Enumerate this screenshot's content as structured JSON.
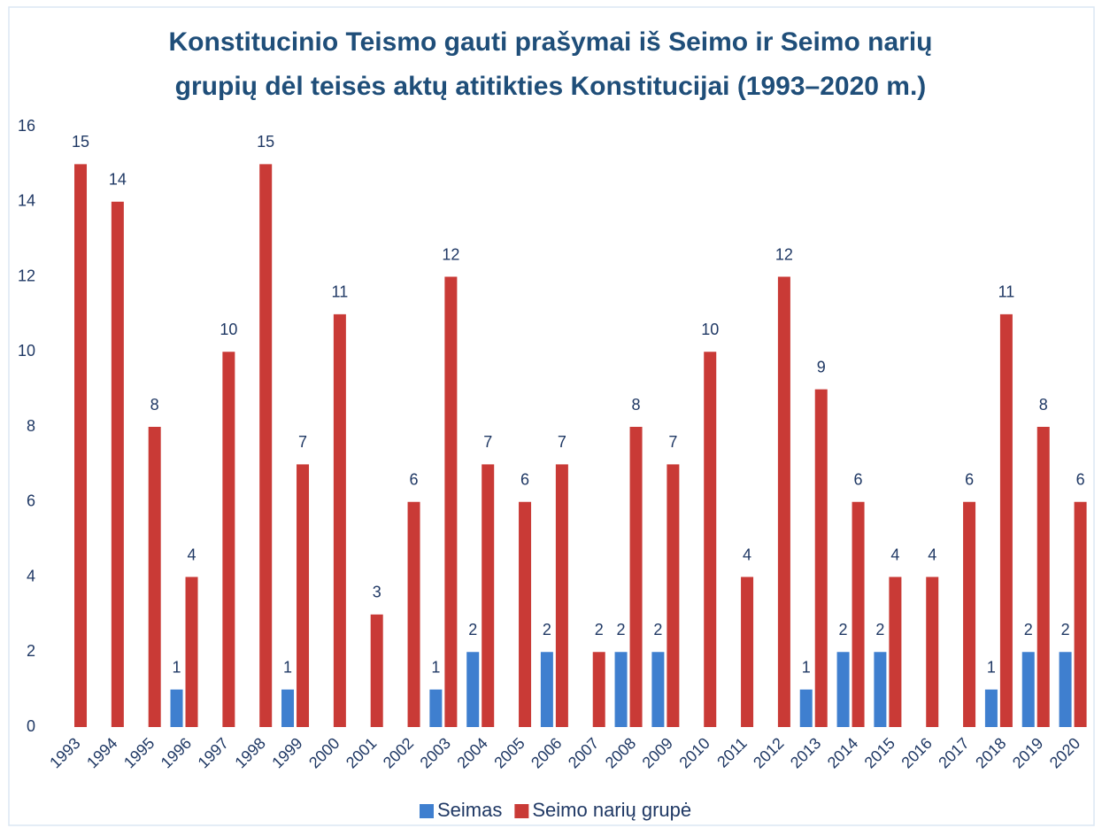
{
  "chart_data": {
    "type": "bar",
    "title": [
      "Konstitucinio Teismo gauti prašymai iš Seimo ir Seimo narių",
      "grupių dėl teisės aktų atitikties Konstitucijai (1993–2020 m.)"
    ],
    "categories": [
      "1993",
      "1994",
      "1995",
      "1996",
      "1997",
      "1998",
      "1999",
      "2000",
      "2001",
      "2002",
      "2003",
      "2004",
      "2005",
      "2006",
      "2007",
      "2008",
      "2009",
      "2010",
      "2011",
      "2012",
      "2013",
      "2014",
      "2015",
      "2016",
      "2017",
      "2018",
      "2019",
      "2020"
    ],
    "series": [
      {
        "name": "Seimas",
        "color": "#3f7fcf",
        "values": [
          null,
          null,
          null,
          1,
          null,
          null,
          1,
          null,
          null,
          null,
          1,
          2,
          null,
          2,
          null,
          2,
          2,
          null,
          null,
          null,
          1,
          2,
          2,
          null,
          null,
          1,
          2,
          2
        ]
      },
      {
        "name": "Seimo narių grupė",
        "color": "#c93a36",
        "values": [
          15,
          14,
          8,
          4,
          10,
          15,
          7,
          11,
          3,
          6,
          12,
          7,
          6,
          7,
          2,
          8,
          7,
          10,
          4,
          12,
          9,
          6,
          4,
          4,
          6,
          11,
          8,
          6
        ]
      }
    ],
    "ylim": [
      0,
      16
    ],
    "yticks": [
      0,
      2,
      4,
      6,
      8,
      10,
      12,
      14,
      16
    ],
    "grid": false,
    "legend": "bottom"
  }
}
